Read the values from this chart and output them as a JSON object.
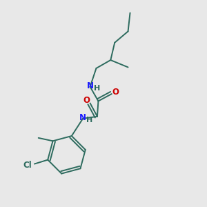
{
  "background_color": "#e8e8e8",
  "bond_color": "#2d6b5e",
  "N_color": "#1a1aff",
  "O_color": "#cc0000",
  "Cl_color": "#2d6b5e",
  "text_color": "#2d6b5e",
  "bond_width": 1.4,
  "figsize": [
    3.0,
    3.0
  ],
  "dpi": 100,
  "xlim": [
    0,
    10
  ],
  "ylim": [
    0,
    10
  ]
}
